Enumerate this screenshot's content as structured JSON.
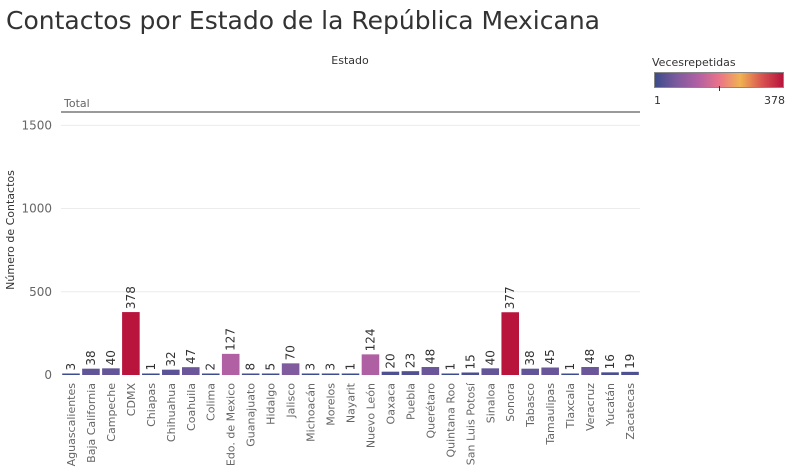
{
  "chart_data": {
    "type": "bar",
    "title": "Contactos por Estado de la República Mexicana",
    "column_header": "Estado",
    "row_header": "Total",
    "ylabel": "Número de Contactos",
    "ylim": [
      0,
      1580
    ],
    "yticks": [
      0,
      500,
      1000,
      1500
    ],
    "categories": [
      "Aguascalientes",
      "Baja California",
      "Campeche",
      "CDMX",
      "Chiapas",
      "Chihuahua",
      "Coahuila",
      "Colima",
      "Edo. de Mexico",
      "Guanajuato",
      "Hidalgo",
      "Jalisco",
      "Michoacán",
      "Morelos",
      "Nayarit",
      "Nuevo León",
      "Oaxaca",
      "Puebla",
      "Querétaro",
      "Quintana Roo",
      "San Luis Potosí",
      "Sinaloa",
      "Sonora",
      "Tabasco",
      "Tamaulipas",
      "Tlaxcala",
      "Veracruz",
      "Yucatán",
      "Zacatecas"
    ],
    "values": [
      3,
      38,
      40,
      378,
      1,
      32,
      47,
      2,
      127,
      8,
      5,
      70,
      3,
      3,
      1,
      124,
      20,
      23,
      48,
      1,
      15,
      40,
      377,
      38,
      45,
      1,
      48,
      16,
      19
    ],
    "color_scale": {
      "title": "Vecesrepetidas",
      "min": 1,
      "max": 378,
      "colors": [
        "#3b4c8c",
        "#7b5a9e",
        "#b160a3",
        "#e9738a",
        "#f0b253",
        "#d95450",
        "#b8143c"
      ]
    }
  }
}
